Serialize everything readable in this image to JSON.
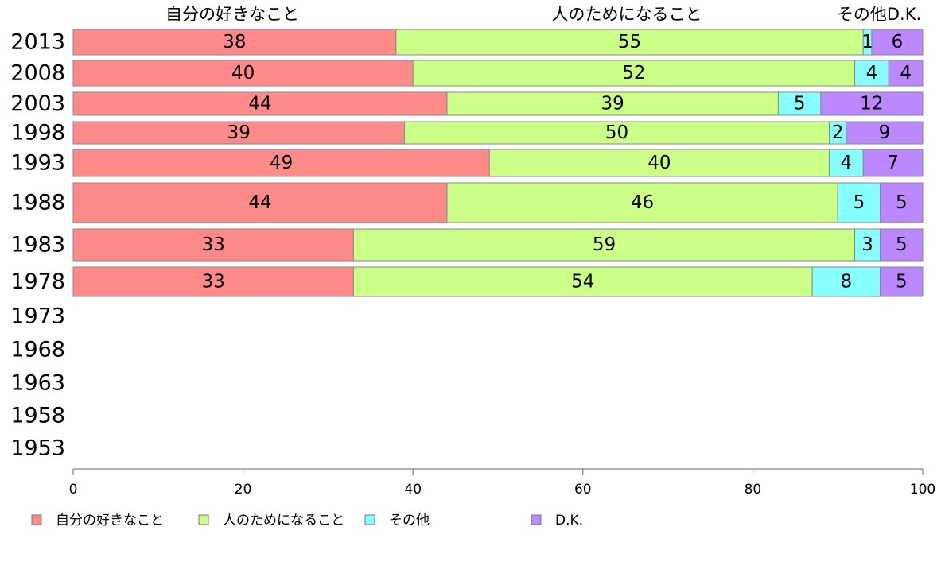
{
  "chart_data": {
    "type": "bar",
    "orientation": "horizontal",
    "stacked": true,
    "categories": [
      "2013",
      "2008",
      "2003",
      "1998",
      "1993",
      "1988",
      "1983",
      "1978",
      "1973",
      "1968",
      "1963",
      "1958",
      "1953"
    ],
    "series": [
      {
        "name": "自分の好きなこと",
        "color": "#ff8a8a",
        "values": [
          38,
          40,
          44,
          39,
          49,
          44,
          33,
          33,
          null,
          null,
          null,
          null,
          null
        ]
      },
      {
        "name": "人のためになること",
        "color": "#ccff88",
        "values": [
          55,
          52,
          39,
          50,
          40,
          46,
          59,
          54,
          null,
          null,
          null,
          null,
          null
        ]
      },
      {
        "name": "その他",
        "color": "#88ffff",
        "values": [
          1,
          4,
          5,
          2,
          4,
          5,
          3,
          8,
          null,
          null,
          null,
          null,
          null
        ]
      },
      {
        "name": "D.K.",
        "color": "#bb88ff",
        "values": [
          6,
          4,
          12,
          9,
          7,
          5,
          5,
          5,
          null,
          null,
          null,
          null,
          null
        ]
      }
    ],
    "top_labels": [
      "自分の好きなこと",
      "人のためになること",
      "その他D.K."
    ],
    "xlim": [
      0,
      100
    ],
    "xticks": [
      "0",
      "20",
      "40",
      "60",
      "80",
      "100"
    ],
    "grid": false,
    "legend": "bottom-left"
  }
}
